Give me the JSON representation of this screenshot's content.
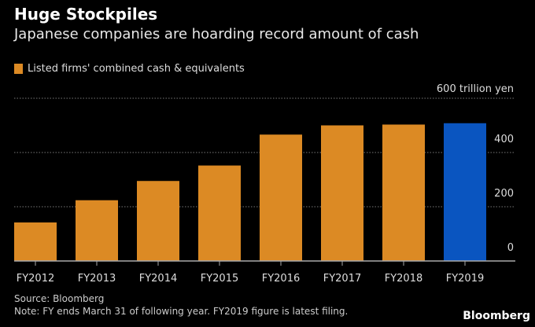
{
  "title": "Huge Stockpiles",
  "subtitle": "Japanese companies are hoarding record amount of cash",
  "legend": "Listed firms' combined cash & equivalents",
  "source": "Source: Bloomberg",
  "note": "Note: FY ends March 31 of following year. FY2019 figure is latest filing.",
  "brand": "Bloomberg",
  "chart_data": {
    "type": "bar",
    "title": "Huge Stockpiles",
    "subtitle": "Japanese companies are hoarding record amount of cash",
    "categories": [
      "FY2012",
      "FY2013",
      "FY2014",
      "FY2015",
      "FY2016",
      "FY2017",
      "FY2018",
      "FY2019"
    ],
    "series": [
      {
        "name": "Listed firms' combined cash & equivalents",
        "values": [
          142,
          224,
          295,
          352,
          466,
          500,
          503,
          508
        ]
      }
    ],
    "highlight": "FY2019",
    "colors": {
      "bar": "#dc8a24",
      "highlight": "#0a55c0"
    },
    "ylabel": "trillion yen",
    "ylim": [
      0,
      600
    ],
    "yticks": [
      0,
      200,
      400,
      600
    ],
    "ytick_labels": [
      "0",
      "200",
      "400",
      "600 trillion yen"
    ],
    "grid": true,
    "legend_position": "top-left"
  }
}
